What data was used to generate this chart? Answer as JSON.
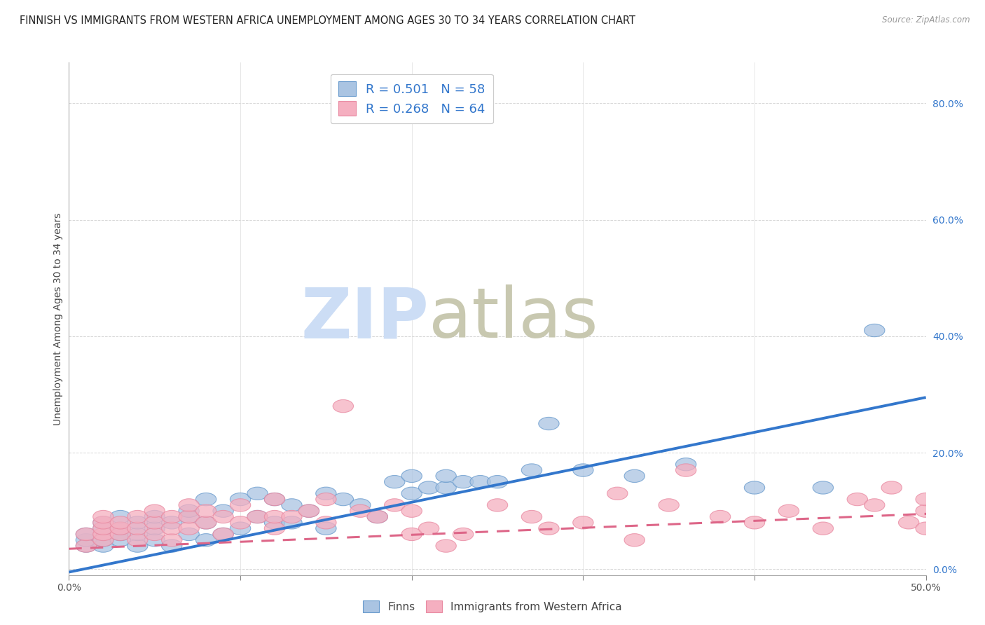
{
  "title": "FINNISH VS IMMIGRANTS FROM WESTERN AFRICA UNEMPLOYMENT AMONG AGES 30 TO 34 YEARS CORRELATION CHART",
  "source": "Source: ZipAtlas.com",
  "ylabel": "Unemployment Among Ages 30 to 34 years",
  "xlim": [
    0.0,
    0.5
  ],
  "ylim": [
    -0.01,
    0.87
  ],
  "xtick_vals": [
    0.0,
    0.1,
    0.2,
    0.3,
    0.4,
    0.5
  ],
  "xtick_labels": [
    "0.0%",
    "",
    "",
    "",
    "",
    "50.0%"
  ],
  "ytick_vals": [
    0.0,
    0.2,
    0.4,
    0.6,
    0.8
  ],
  "ytick_labels": [
    "0.0%",
    "20.0%",
    "40.0%",
    "60.0%",
    "80.0%"
  ],
  "R_finns": 0.501,
  "N_finns": 58,
  "R_immigrants": 0.268,
  "N_immigrants": 64,
  "finn_color": "#aac4e2",
  "immigrant_color": "#f5afc0",
  "finn_edge_color": "#6699cc",
  "immigrant_edge_color": "#e888a0",
  "finn_line_color": "#3377cc",
  "immigrant_line_color": "#dd6688",
  "legend_r_color": "#3377cc",
  "legend_n_color": "#3377cc",
  "watermark_zip_color": "#ccddf5",
  "watermark_atlas_color": "#c8c8b0",
  "background_color": "#ffffff",
  "grid_color": "#cccccc",
  "finn_slope": 0.6,
  "finn_intercept": -0.005,
  "immigrant_slope": 0.12,
  "immigrant_intercept": 0.035,
  "finns_x": [
    0.01,
    0.01,
    0.01,
    0.02,
    0.02,
    0.02,
    0.02,
    0.03,
    0.03,
    0.03,
    0.03,
    0.04,
    0.04,
    0.04,
    0.05,
    0.05,
    0.05,
    0.06,
    0.06,
    0.07,
    0.07,
    0.07,
    0.08,
    0.08,
    0.08,
    0.09,
    0.09,
    0.1,
    0.1,
    0.11,
    0.11,
    0.12,
    0.12,
    0.13,
    0.13,
    0.14,
    0.15,
    0.15,
    0.16,
    0.17,
    0.18,
    0.19,
    0.2,
    0.2,
    0.21,
    0.22,
    0.22,
    0.23,
    0.24,
    0.25,
    0.27,
    0.28,
    0.3,
    0.33,
    0.36,
    0.4,
    0.44,
    0.47
  ],
  "finns_y": [
    0.04,
    0.05,
    0.06,
    0.04,
    0.05,
    0.07,
    0.08,
    0.05,
    0.06,
    0.07,
    0.09,
    0.04,
    0.06,
    0.08,
    0.05,
    0.07,
    0.09,
    0.04,
    0.08,
    0.06,
    0.09,
    0.1,
    0.05,
    0.08,
    0.12,
    0.06,
    0.1,
    0.07,
    0.12,
    0.09,
    0.13,
    0.08,
    0.12,
    0.08,
    0.11,
    0.1,
    0.07,
    0.13,
    0.12,
    0.11,
    0.09,
    0.15,
    0.13,
    0.16,
    0.14,
    0.14,
    0.16,
    0.15,
    0.15,
    0.15,
    0.17,
    0.25,
    0.17,
    0.16,
    0.18,
    0.14,
    0.14,
    0.41
  ],
  "immigrants_x": [
    0.01,
    0.01,
    0.02,
    0.02,
    0.02,
    0.02,
    0.02,
    0.03,
    0.03,
    0.03,
    0.04,
    0.04,
    0.04,
    0.05,
    0.05,
    0.05,
    0.06,
    0.06,
    0.06,
    0.07,
    0.07,
    0.07,
    0.08,
    0.08,
    0.09,
    0.09,
    0.1,
    0.1,
    0.11,
    0.12,
    0.12,
    0.12,
    0.13,
    0.14,
    0.15,
    0.15,
    0.16,
    0.17,
    0.18,
    0.19,
    0.2,
    0.2,
    0.21,
    0.22,
    0.23,
    0.25,
    0.27,
    0.28,
    0.3,
    0.32,
    0.33,
    0.35,
    0.36,
    0.38,
    0.4,
    0.42,
    0.44,
    0.46,
    0.47,
    0.48,
    0.49,
    0.5,
    0.5,
    0.5
  ],
  "immigrants_y": [
    0.04,
    0.06,
    0.05,
    0.06,
    0.07,
    0.08,
    0.09,
    0.06,
    0.07,
    0.08,
    0.05,
    0.07,
    0.09,
    0.06,
    0.08,
    0.1,
    0.05,
    0.07,
    0.09,
    0.07,
    0.09,
    0.11,
    0.08,
    0.1,
    0.06,
    0.09,
    0.08,
    0.11,
    0.09,
    0.07,
    0.09,
    0.12,
    0.09,
    0.1,
    0.08,
    0.12,
    0.28,
    0.1,
    0.09,
    0.11,
    0.1,
    0.06,
    0.07,
    0.04,
    0.06,
    0.11,
    0.09,
    0.07,
    0.08,
    0.13,
    0.05,
    0.11,
    0.17,
    0.09,
    0.08,
    0.1,
    0.07,
    0.12,
    0.11,
    0.14,
    0.08,
    0.07,
    0.1,
    0.12
  ]
}
